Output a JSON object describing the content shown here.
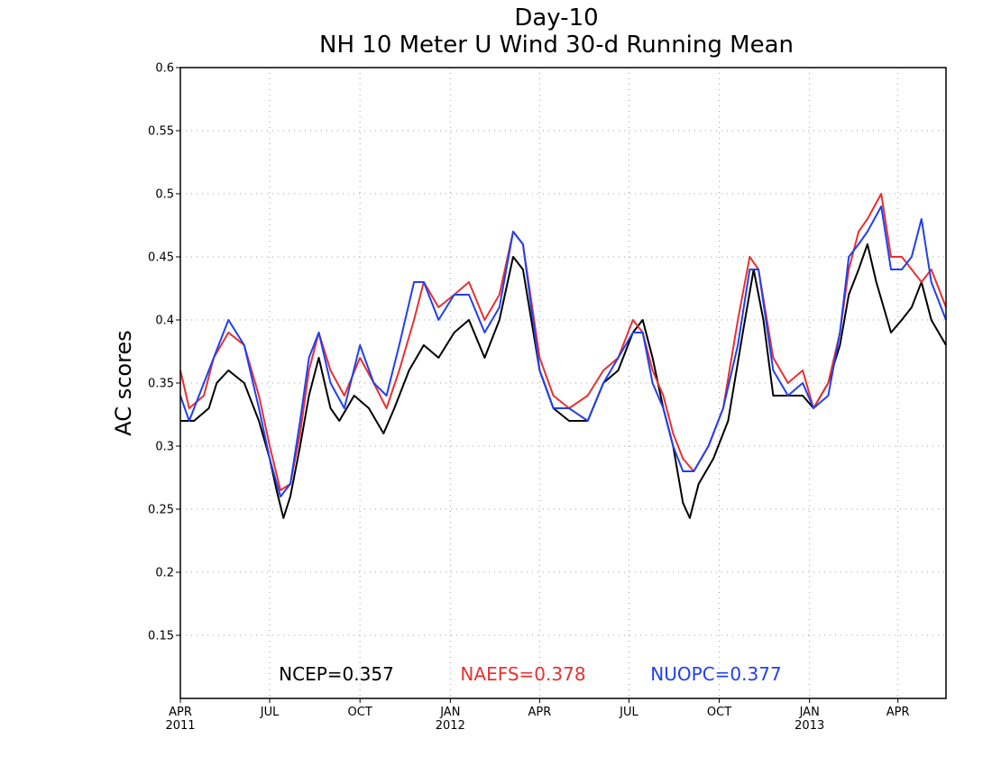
{
  "chart_data": {
    "type": "line",
    "title": "Day-10",
    "subtitle": "NH 10 Meter U Wind 30-d Running Mean",
    "ylabel": "AC scores",
    "xlabel": "",
    "ylim": [
      0.1,
      0.6
    ],
    "xlim": [
      "2011-04-01",
      "2013-05-20"
    ],
    "grid": true,
    "y_ticks": [
      {
        "value": 0.15,
        "label": "0.15"
      },
      {
        "value": 0.2,
        "label": "0.2"
      },
      {
        "value": 0.25,
        "label": "0.25"
      },
      {
        "value": 0.3,
        "label": "0.3"
      },
      {
        "value": 0.35,
        "label": "0.35"
      },
      {
        "value": 0.4,
        "label": "0.4"
      },
      {
        "value": 0.45,
        "label": "0.45"
      },
      {
        "value": 0.5,
        "label": "0.5"
      },
      {
        "value": 0.55,
        "label": "0.55"
      },
      {
        "value": 0.6,
        "label": "0.6"
      }
    ],
    "x_ticks": [
      {
        "date": "2011-04-01",
        "label": "APR",
        "sublabel": "2011"
      },
      {
        "date": "2011-07-01",
        "label": "JUL",
        "sublabel": ""
      },
      {
        "date": "2011-10-01",
        "label": "OCT",
        "sublabel": ""
      },
      {
        "date": "2012-01-01",
        "label": "JAN",
        "sublabel": "2012"
      },
      {
        "date": "2012-04-01",
        "label": "APR",
        "sublabel": ""
      },
      {
        "date": "2012-07-01",
        "label": "JUL",
        "sublabel": ""
      },
      {
        "date": "2012-10-01",
        "label": "OCT",
        "sublabel": ""
      },
      {
        "date": "2013-01-01",
        "label": "JAN",
        "sublabel": "2013"
      },
      {
        "date": "2013-04-01",
        "label": "APR",
        "sublabel": ""
      }
    ],
    "legend_placement": "bottom-center",
    "series": [
      {
        "name": "NCEP",
        "legend_label": "NCEP=0.357",
        "color": "#000000",
        "points": [
          [
            "2011-04-01",
            0.32
          ],
          [
            "2011-04-15",
            0.32
          ],
          [
            "2011-04-30",
            0.33
          ],
          [
            "2011-05-08",
            0.35
          ],
          [
            "2011-05-20",
            0.36
          ],
          [
            "2011-06-05",
            0.35
          ],
          [
            "2011-06-20",
            0.32
          ],
          [
            "2011-07-01",
            0.29
          ],
          [
            "2011-07-08",
            0.265
          ],
          [
            "2011-07-15",
            0.243
          ],
          [
            "2011-07-22",
            0.26
          ],
          [
            "2011-08-01",
            0.3
          ],
          [
            "2011-08-10",
            0.34
          ],
          [
            "2011-08-20",
            0.37
          ],
          [
            "2011-09-01",
            0.33
          ],
          [
            "2011-09-10",
            0.32
          ],
          [
            "2011-09-25",
            0.34
          ],
          [
            "2011-10-10",
            0.33
          ],
          [
            "2011-10-25",
            0.31
          ],
          [
            "2011-11-05",
            0.33
          ],
          [
            "2011-11-20",
            0.36
          ],
          [
            "2011-12-05",
            0.38
          ],
          [
            "2011-12-20",
            0.37
          ],
          [
            "2012-01-05",
            0.39
          ],
          [
            "2012-01-20",
            0.4
          ],
          [
            "2012-02-05",
            0.37
          ],
          [
            "2012-02-20",
            0.4
          ],
          [
            "2012-03-05",
            0.45
          ],
          [
            "2012-03-15",
            0.44
          ],
          [
            "2012-04-01",
            0.36
          ],
          [
            "2012-04-15",
            0.33
          ],
          [
            "2012-05-01",
            0.32
          ],
          [
            "2012-05-20",
            0.32
          ],
          [
            "2012-06-05",
            0.35
          ],
          [
            "2012-06-20",
            0.36
          ],
          [
            "2012-07-05",
            0.39
          ],
          [
            "2012-07-15",
            0.4
          ],
          [
            "2012-07-25",
            0.37
          ],
          [
            "2012-08-05",
            0.33
          ],
          [
            "2012-08-15",
            0.3
          ],
          [
            "2012-08-25",
            0.255
          ],
          [
            "2012-09-01",
            0.243
          ],
          [
            "2012-09-10",
            0.27
          ],
          [
            "2012-09-25",
            0.29
          ],
          [
            "2012-10-10",
            0.32
          ],
          [
            "2012-10-25",
            0.39
          ],
          [
            "2012-11-05",
            0.44
          ],
          [
            "2012-11-15",
            0.4
          ],
          [
            "2012-11-25",
            0.34
          ],
          [
            "2012-12-10",
            0.34
          ],
          [
            "2012-12-25",
            0.34
          ],
          [
            "2013-01-05",
            0.33
          ],
          [
            "2013-01-20",
            0.35
          ],
          [
            "2013-02-01",
            0.38
          ],
          [
            "2013-02-10",
            0.42
          ],
          [
            "2013-02-20",
            0.44
          ],
          [
            "2013-03-01",
            0.46
          ],
          [
            "2013-03-10",
            0.43
          ],
          [
            "2013-03-25",
            0.39
          ],
          [
            "2013-04-05",
            0.4
          ],
          [
            "2013-04-15",
            0.41
          ],
          [
            "2013-04-25",
            0.43
          ],
          [
            "2013-05-05",
            0.4
          ],
          [
            "2013-05-20",
            0.38
          ]
        ]
      },
      {
        "name": "NAEFS",
        "legend_label": "NAEFS=0.378",
        "color": "#e83030",
        "points": [
          [
            "2011-04-01",
            0.36
          ],
          [
            "2011-04-10",
            0.33
          ],
          [
            "2011-04-25",
            0.34
          ],
          [
            "2011-05-05",
            0.37
          ],
          [
            "2011-05-20",
            0.39
          ],
          [
            "2011-06-05",
            0.38
          ],
          [
            "2011-06-20",
            0.34
          ],
          [
            "2011-07-01",
            0.3
          ],
          [
            "2011-07-12",
            0.265
          ],
          [
            "2011-07-22",
            0.27
          ],
          [
            "2011-08-01",
            0.31
          ],
          [
            "2011-08-10",
            0.36
          ],
          [
            "2011-08-20",
            0.39
          ],
          [
            "2011-09-01",
            0.36
          ],
          [
            "2011-09-15",
            0.34
          ],
          [
            "2011-10-01",
            0.37
          ],
          [
            "2011-10-15",
            0.35
          ],
          [
            "2011-10-28",
            0.33
          ],
          [
            "2011-11-10",
            0.36
          ],
          [
            "2011-11-25",
            0.4
          ],
          [
            "2011-12-05",
            0.43
          ],
          [
            "2011-12-20",
            0.41
          ],
          [
            "2012-01-05",
            0.42
          ],
          [
            "2012-01-20",
            0.43
          ],
          [
            "2012-02-05",
            0.4
          ],
          [
            "2012-02-20",
            0.42
          ],
          [
            "2012-03-05",
            0.47
          ],
          [
            "2012-03-15",
            0.46
          ],
          [
            "2012-04-01",
            0.37
          ],
          [
            "2012-04-15",
            0.34
          ],
          [
            "2012-05-01",
            0.33
          ],
          [
            "2012-05-20",
            0.34
          ],
          [
            "2012-06-05",
            0.36
          ],
          [
            "2012-06-20",
            0.37
          ],
          [
            "2012-07-05",
            0.4
          ],
          [
            "2012-07-15",
            0.39
          ],
          [
            "2012-07-25",
            0.36
          ],
          [
            "2012-08-05",
            0.34
          ],
          [
            "2012-08-15",
            0.31
          ],
          [
            "2012-08-25",
            0.29
          ],
          [
            "2012-09-05",
            0.28
          ],
          [
            "2012-09-20",
            0.3
          ],
          [
            "2012-10-05",
            0.33
          ],
          [
            "2012-10-20",
            0.4
          ],
          [
            "2012-11-01",
            0.45
          ],
          [
            "2012-11-10",
            0.44
          ],
          [
            "2012-11-25",
            0.37
          ],
          [
            "2012-12-10",
            0.35
          ],
          [
            "2012-12-25",
            0.36
          ],
          [
            "2013-01-05",
            0.33
          ],
          [
            "2013-01-20",
            0.35
          ],
          [
            "2013-02-01",
            0.39
          ],
          [
            "2013-02-10",
            0.44
          ],
          [
            "2013-02-20",
            0.47
          ],
          [
            "2013-03-01",
            0.48
          ],
          [
            "2013-03-15",
            0.5
          ],
          [
            "2013-03-25",
            0.45
          ],
          [
            "2013-04-05",
            0.45
          ],
          [
            "2013-04-15",
            0.44
          ],
          [
            "2013-04-25",
            0.43
          ],
          [
            "2013-05-05",
            0.44
          ],
          [
            "2013-05-20",
            0.41
          ]
        ]
      },
      {
        "name": "NUOPC",
        "legend_label": "NUOPC=0.377",
        "color": "#2040f0",
        "points": [
          [
            "2011-04-01",
            0.34
          ],
          [
            "2011-04-10",
            0.32
          ],
          [
            "2011-04-25",
            0.35
          ],
          [
            "2011-05-05",
            0.37
          ],
          [
            "2011-05-20",
            0.4
          ],
          [
            "2011-06-05",
            0.38
          ],
          [
            "2011-06-20",
            0.33
          ],
          [
            "2011-07-01",
            0.29
          ],
          [
            "2011-07-12",
            0.26
          ],
          [
            "2011-07-22",
            0.27
          ],
          [
            "2011-08-01",
            0.32
          ],
          [
            "2011-08-10",
            0.37
          ],
          [
            "2011-08-20",
            0.39
          ],
          [
            "2011-09-01",
            0.35
          ],
          [
            "2011-09-15",
            0.33
          ],
          [
            "2011-10-01",
            0.38
          ],
          [
            "2011-10-15",
            0.35
          ],
          [
            "2011-10-28",
            0.34
          ],
          [
            "2011-11-10",
            0.38
          ],
          [
            "2011-11-25",
            0.43
          ],
          [
            "2011-12-05",
            0.43
          ],
          [
            "2011-12-20",
            0.4
          ],
          [
            "2012-01-05",
            0.42
          ],
          [
            "2012-01-20",
            0.42
          ],
          [
            "2012-02-05",
            0.39
          ],
          [
            "2012-02-20",
            0.41
          ],
          [
            "2012-03-05",
            0.47
          ],
          [
            "2012-03-15",
            0.46
          ],
          [
            "2012-04-01",
            0.36
          ],
          [
            "2012-04-15",
            0.33
          ],
          [
            "2012-05-01",
            0.33
          ],
          [
            "2012-05-20",
            0.32
          ],
          [
            "2012-06-05",
            0.35
          ],
          [
            "2012-06-20",
            0.37
          ],
          [
            "2012-07-05",
            0.39
          ],
          [
            "2012-07-15",
            0.39
          ],
          [
            "2012-07-25",
            0.35
          ],
          [
            "2012-08-05",
            0.33
          ],
          [
            "2012-08-15",
            0.3
          ],
          [
            "2012-08-25",
            0.28
          ],
          [
            "2012-09-05",
            0.28
          ],
          [
            "2012-09-20",
            0.3
          ],
          [
            "2012-10-05",
            0.33
          ],
          [
            "2012-10-20",
            0.38
          ],
          [
            "2012-11-01",
            0.44
          ],
          [
            "2012-11-10",
            0.44
          ],
          [
            "2012-11-25",
            0.36
          ],
          [
            "2012-12-10",
            0.34
          ],
          [
            "2012-12-25",
            0.35
          ],
          [
            "2013-01-05",
            0.33
          ],
          [
            "2013-01-20",
            0.34
          ],
          [
            "2013-02-01",
            0.39
          ],
          [
            "2013-02-10",
            0.45
          ],
          [
            "2013-02-20",
            0.46
          ],
          [
            "2013-03-01",
            0.47
          ],
          [
            "2013-03-15",
            0.49
          ],
          [
            "2013-03-25",
            0.44
          ],
          [
            "2013-04-05",
            0.44
          ],
          [
            "2013-04-15",
            0.45
          ],
          [
            "2013-04-25",
            0.48
          ],
          [
            "2013-05-05",
            0.43
          ],
          [
            "2013-05-20",
            0.4
          ]
        ]
      }
    ]
  }
}
